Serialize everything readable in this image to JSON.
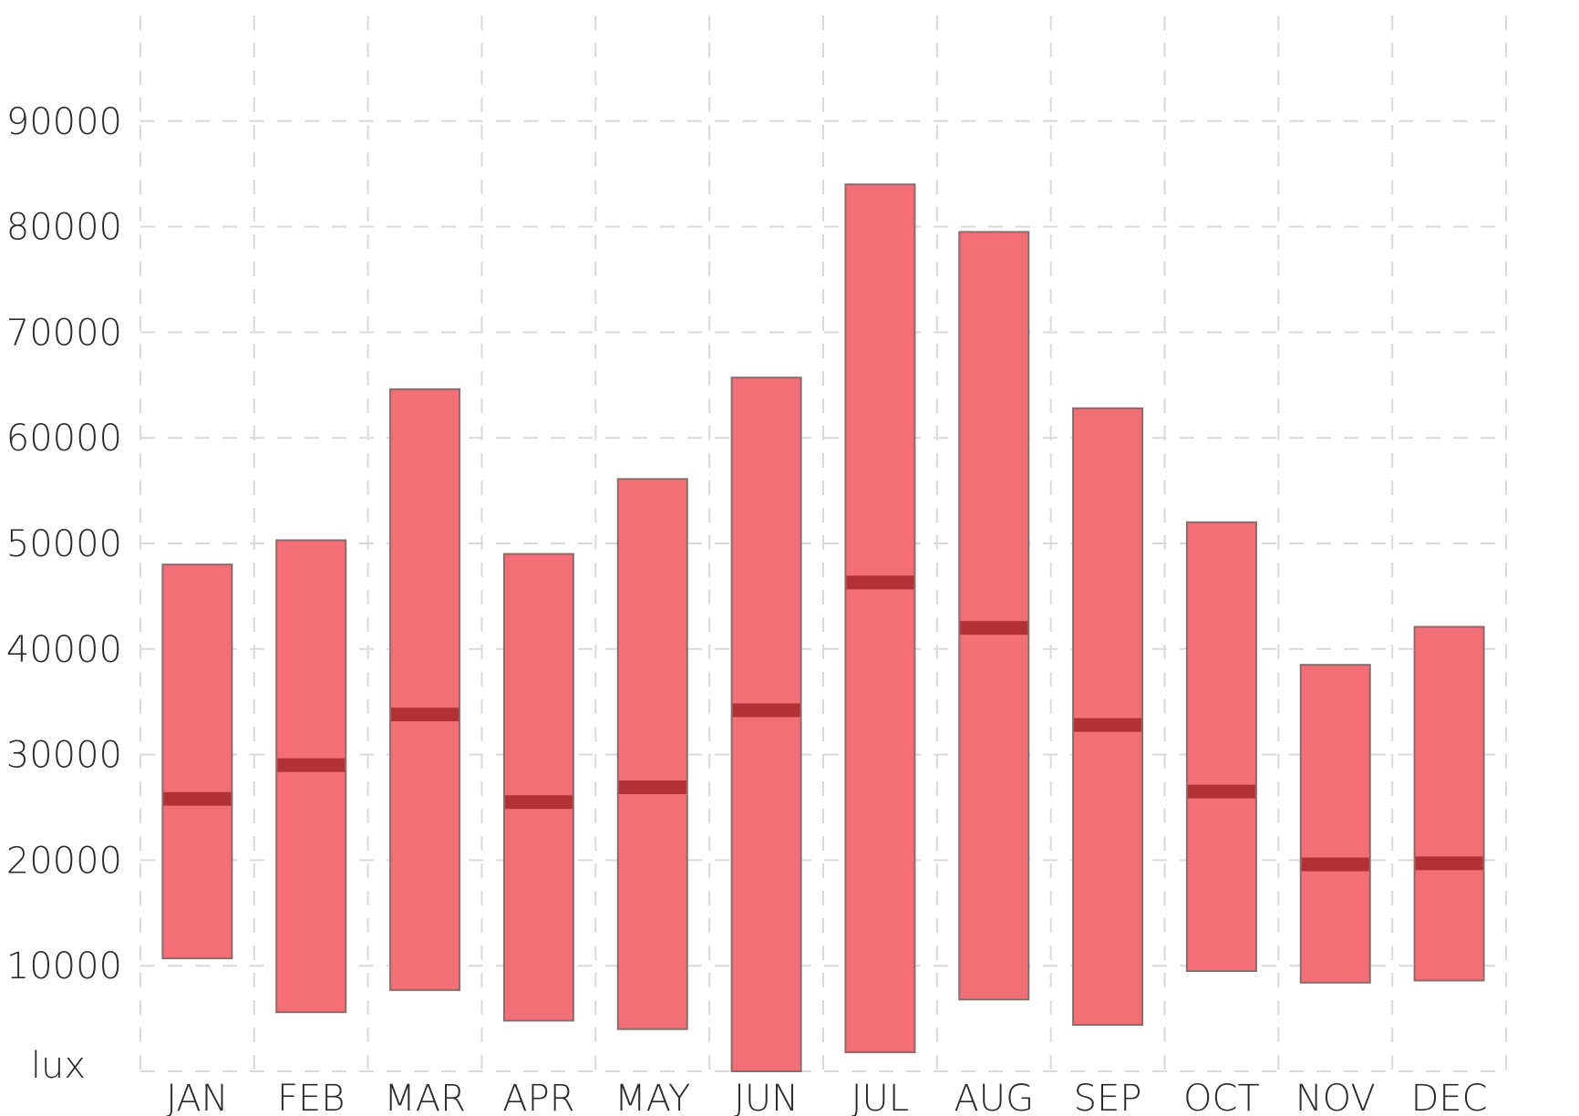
{
  "chart_data": {
    "type": "bar",
    "subtype": "floating-range-with-median",
    "categories": [
      "JAN",
      "FEB",
      "MAR",
      "APR",
      "MAY",
      "JUN",
      "JUL",
      "AUG",
      "SEP",
      "OCT",
      "NOV",
      "DEC"
    ],
    "series": [
      {
        "key": "low",
        "values": [
          10700,
          5600,
          7700,
          4800,
          4000,
          0,
          1800,
          6800,
          4400,
          9500,
          8400,
          8600
        ]
      },
      {
        "key": "high",
        "values": [
          48000,
          50300,
          64600,
          49000,
          56100,
          65700,
          84000,
          79500,
          62800,
          52000,
          38500,
          42100
        ]
      },
      {
        "key": "median",
        "values": [
          25800,
          29000,
          33800,
          25500,
          26900,
          34200,
          46300,
          42000,
          32800,
          26500,
          19600,
          19700
        ]
      }
    ],
    "y_ticks": [
      "10000",
      "20000",
      "30000",
      "40000",
      "50000",
      "60000",
      "70000",
      "80000",
      "90000"
    ],
    "y_unit_label": "lux",
    "ylim": [
      0,
      100000
    ],
    "grid": true,
    "colors": {
      "bar": "#f26f77",
      "median": "#b03236",
      "bar_edge": "#8c6b6b",
      "grid": "#d9d9d9"
    }
  }
}
